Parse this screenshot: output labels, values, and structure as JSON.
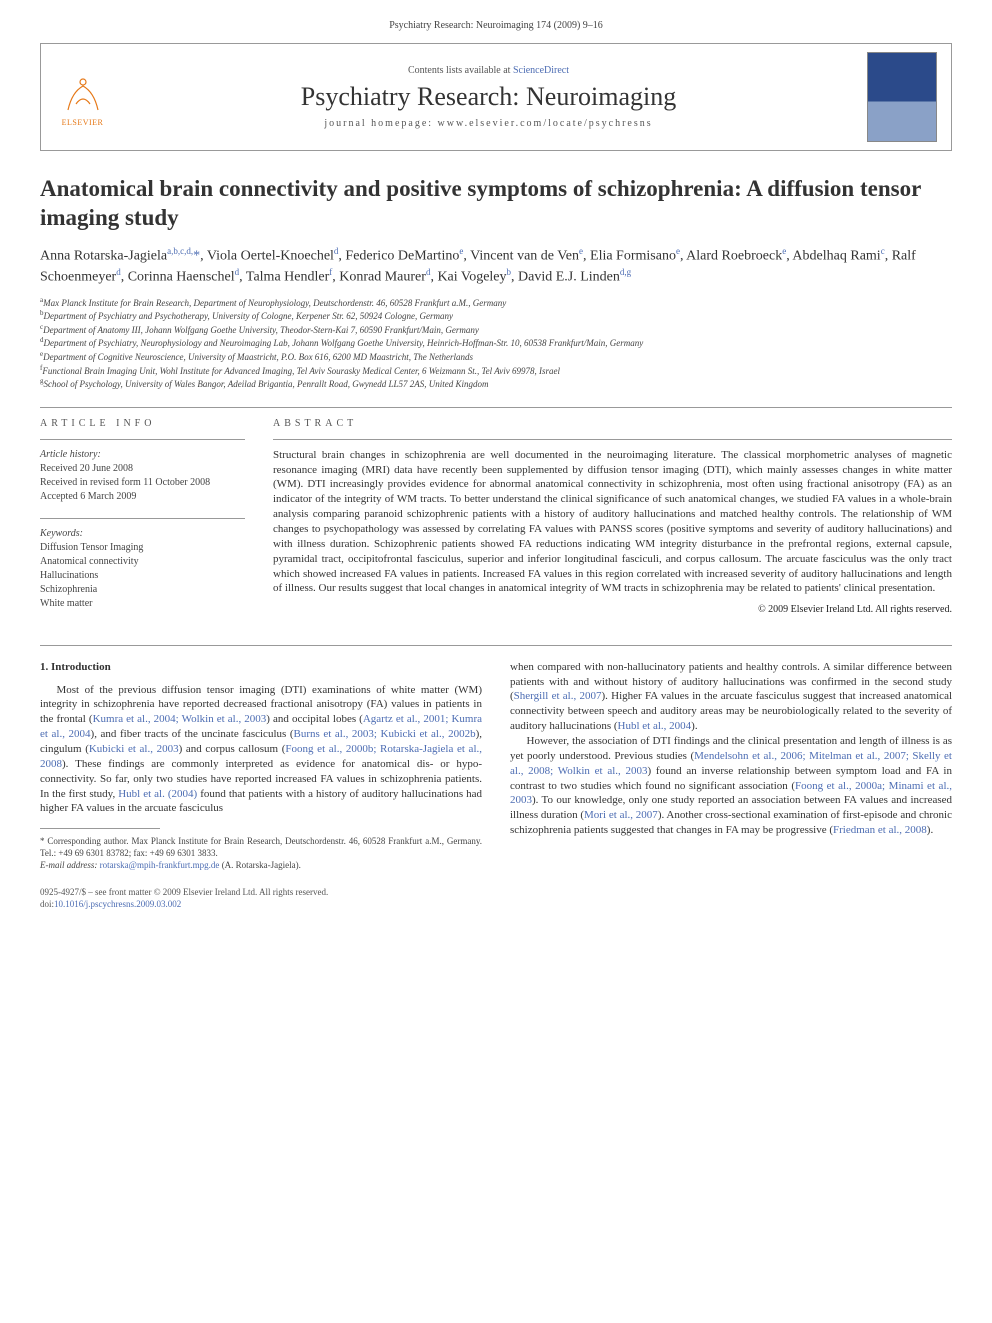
{
  "header_line": "Psychiatry Research: Neuroimaging 174 (2009) 9–16",
  "header": {
    "contents_prefix": "Contents lists available at ",
    "contents_link": "ScienceDirect",
    "journal_name": "Psychiatry Research: Neuroimaging",
    "homepage_prefix": "journal homepage: ",
    "homepage": "www.elsevier.com/locate/psychresns",
    "publisher_name": "ELSEVIER"
  },
  "article": {
    "title": "Anatomical brain connectivity and positive symptoms of schizophrenia: A diffusion tensor imaging study",
    "authors_html": "Anna Rotarska-Jagiela<span class='sup'>a,b,c,d,</span><a href='#'>*</a>, Viola Oertel-Knoechel<span class='sup'>d</span>, Federico DeMartino<span class='sup'>e</span>, Vincent van de Ven<span class='sup'>e</span>, Elia Formisano<span class='sup'>e</span>, Alard Roebroeck<span class='sup'>e</span>, Abdelhaq Rami<span class='sup'>c</span>, Ralf Schoenmeyer<span class='sup'>d</span>, Corinna Haenschel<span class='sup'>d</span>, Talma Hendler<span class='sup'>f</span>, Konrad Maurer<span class='sup'>d</span>, Kai Vogeley<span class='sup'>b</span>, David E.J. Linden<span class='sup'>d,g</span>",
    "affiliations": [
      {
        "sup": "a",
        "text": "Max Planck Institute for Brain Research, Department of Neurophysiology, Deutschordenstr. 46, 60528 Frankfurt a.M., Germany"
      },
      {
        "sup": "b",
        "text": "Department of Psychiatry and Psychotherapy, University of Cologne, Kerpener Str. 62, 50924 Cologne, Germany"
      },
      {
        "sup": "c",
        "text": "Department of Anatomy III, Johann Wolfgang Goethe University, Theodor-Stern-Kai 7, 60590 Frankfurt/Main, Germany"
      },
      {
        "sup": "d",
        "text": "Department of Psychiatry, Neurophysiology and Neuroimaging Lab, Johann Wolfgang Goethe University, Heinrich-Hoffman-Str. 10, 60538 Frankfurt/Main, Germany"
      },
      {
        "sup": "e",
        "text": "Department of Cognitive Neuroscience, University of Maastricht, P.O. Box 616, 6200 MD Maastricht, The Netherlands"
      },
      {
        "sup": "f",
        "text": "Functional Brain Imaging Unit, Wohl Institute for Advanced Imaging, Tel Aviv Sourasky Medical Center, 6 Weizmann St., Tel Aviv 69978, Israel"
      },
      {
        "sup": "g",
        "text": "School of Psychology, University of Wales Bangor, Adeilad Brigantia, Penrallt Road, Gwynedd LL57 2AS, United Kingdom"
      }
    ]
  },
  "info": {
    "label": "ARTICLE INFO",
    "history_hdr": "Article history:",
    "received": "Received 20 June 2008",
    "revised": "Received in revised form 11 October 2008",
    "accepted": "Accepted 6 March 2009",
    "keywords_hdr": "Keywords:",
    "keywords": [
      "Diffusion Tensor Imaging",
      "Anatomical connectivity",
      "Hallucinations",
      "Schizophrenia",
      "White matter"
    ]
  },
  "abstract": {
    "label": "ABSTRACT",
    "text": "Structural brain changes in schizophrenia are well documented in the neuroimaging literature. The classical morphometric analyses of magnetic resonance imaging (MRI) data have recently been supplemented by diffusion tensor imaging (DTI), which mainly assesses changes in white matter (WM). DTI increasingly provides evidence for abnormal anatomical connectivity in schizophrenia, most often using fractional anisotropy (FA) as an indicator of the integrity of WM tracts. To better understand the clinical significance of such anatomical changes, we studied FA values in a whole-brain analysis comparing paranoid schizophrenic patients with a history of auditory hallucinations and matched healthy controls. The relationship of WM changes to psychopathology was assessed by correlating FA values with PANSS scores (positive symptoms and severity of auditory hallucinations) and with illness duration. Schizophrenic patients showed FA reductions indicating WM integrity disturbance in the prefrontal regions, external capsule, pyramidal tract, occipitofrontal fasciculus, superior and inferior longitudinal fasciculi, and corpus callosum. The arcuate fasciculus was the only tract which showed increased FA values in patients. Increased FA values in this region correlated with increased severity of auditory hallucinations and length of illness. Our results suggest that local changes in anatomical integrity of WM tracts in schizophrenia may be related to patients' clinical presentation.",
    "copyright": "© 2009 Elsevier Ireland Ltd. All rights reserved."
  },
  "body": {
    "section1_hdr": "1. Introduction",
    "col1_p1a": "Most of the previous diffusion tensor imaging (DTI) examinations of white matter (WM) integrity in schizophrenia have reported decreased fractional anisotropy (FA) values in patients in the frontal (",
    "col1_ref1": "Kumra et al., 2004; Wolkin et al., 2003",
    "col1_p1b": ") and occipital lobes (",
    "col1_ref2": "Agartz et al., 2001; Kumra et al., 2004",
    "col1_p1c": "), and fiber tracts of the uncinate fasciculus (",
    "col1_ref3": "Burns et al., 2003; Kubicki et al., 2002b",
    "col1_p1d": "), cingulum (",
    "col1_ref4": "Kubicki et al., 2003",
    "col1_p1e": ") and corpus callosum (",
    "col1_ref5": "Foong et al., 2000b; Rotarska-Jagiela et al., 2008",
    "col1_p1f": "). These findings are commonly interpreted as evidence for anatomical dis- or hypo-connectivity. So far, only two studies have reported increased FA values in schizophrenia patients. In the first study, ",
    "col1_ref6": "Hubl et al. (2004)",
    "col1_p1g": " found that patients with a history of auditory hallucinations had higher FA values in the arcuate fasciculus",
    "col2_p1a": "when compared with non-hallucinatory patients and healthy controls. A similar difference between patients with and without history of auditory hallucinations was confirmed in the second study (",
    "col2_ref1": "Shergill et al., 2007",
    "col2_p1b": "). Higher FA values in the arcuate fasciculus suggest that increased anatomical connectivity between speech and auditory areas may be neurobiologically related to the severity of auditory hallucinations (",
    "col2_ref2": "Hubl et al., 2004",
    "col2_p1c": ").",
    "col2_p2a": "However, the association of DTI findings and the clinical presentation and length of illness is as yet poorly understood. Previous studies (",
    "col2_ref3": "Mendelsohn et al., 2006; Mitelman et al., 2007; Skelly et al., 2008; Wolkin et al., 2003",
    "col2_p2b": ") found an inverse relationship between symptom load and FA in contrast to two studies which found no significant association (",
    "col2_ref4": "Foong et al., 2000a; Minami et al., 2003",
    "col2_p2c": "). To our knowledge, only one study reported an association between FA values and increased illness duration (",
    "col2_ref5": "Mori et al., 2007",
    "col2_p2d": "). Another cross-sectional examination of first-episode and chronic schizophrenia patients suggested that changes in FA may be progressive (",
    "col2_ref6": "Friedman et al., 2008",
    "col2_p2e": ")."
  },
  "footnote": {
    "corresp": "* Corresponding author. Max Planck Institute for Brain Research, Deutschordenstr. 46, 60528 Frankfurt a.M., Germany. Tel.: +49 69 6301 83782; fax: +49 69 6301 3833.",
    "email_label": "E-mail address: ",
    "email": "rotarska@mpih-frankfurt.mpg.de",
    "email_suffix": " (A. Rotarska-Jagiela)."
  },
  "footer": {
    "line1": "0925-4927/$ – see front matter © 2009 Elsevier Ireland Ltd. All rights reserved.",
    "doi_label": "doi:",
    "doi": "10.1016/j.pscychresns.2009.03.002"
  },
  "colors": {
    "link": "#4d6db3",
    "elsevier": "#e67817",
    "rule": "#999999"
  }
}
